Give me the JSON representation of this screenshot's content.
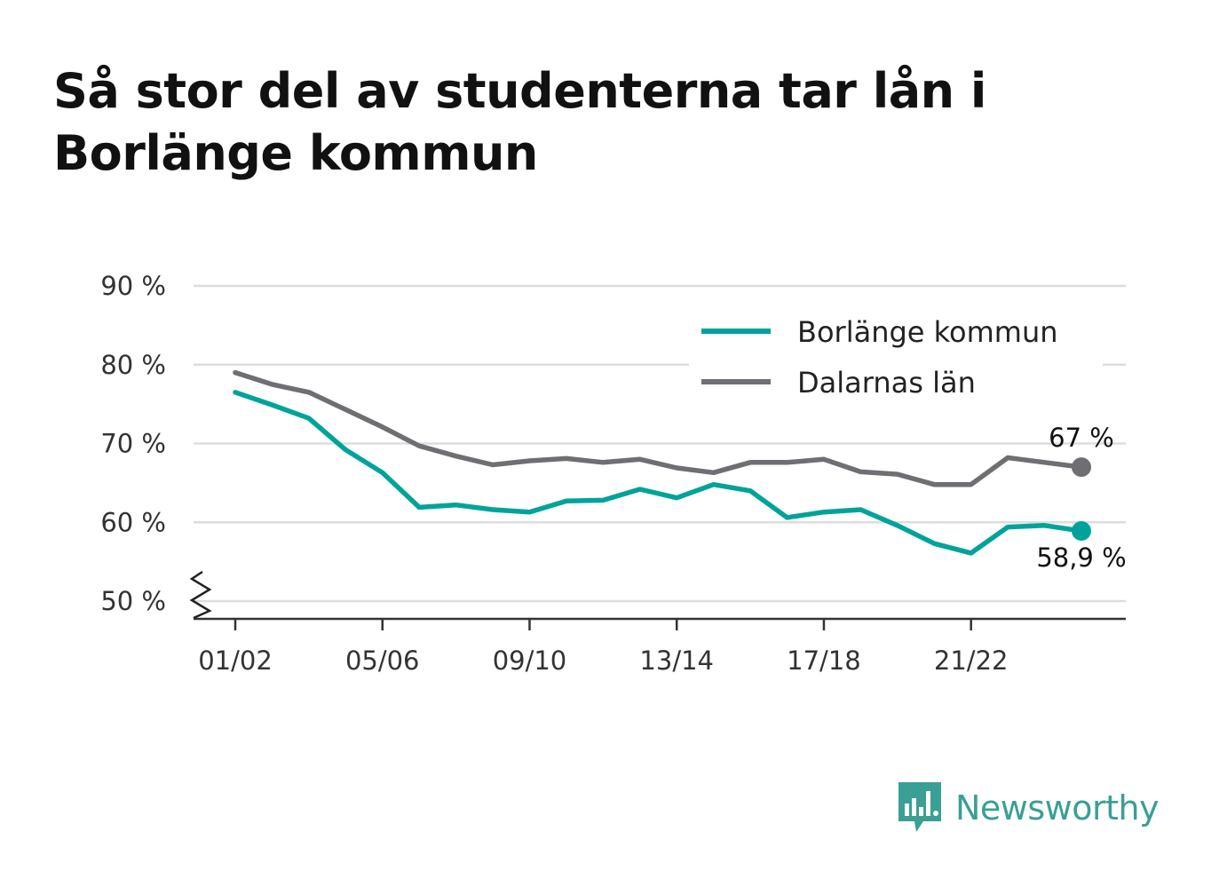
{
  "title": "Så stor del av studenterna tar lån i Borlänge kommun",
  "brand": {
    "name": "Newsworthy",
    "icon": "bar-chart-speech-bubble-icon",
    "color": "#3a9f94"
  },
  "chart_data": {
    "type": "line",
    "title": "Så stor del av studenterna tar lån i Borlänge kommun",
    "xlabel": "",
    "ylabel": "",
    "x": [
      "01/02",
      "02/03",
      "03/04",
      "04/05",
      "05/06",
      "06/07",
      "07/08",
      "08/09",
      "09/10",
      "10/11",
      "11/12",
      "12/13",
      "13/14",
      "14/15",
      "15/16",
      "16/17",
      "17/18",
      "18/19",
      "19/20",
      "20/21",
      "21/22",
      "22/23",
      "23/24",
      "24/25"
    ],
    "x_tick_labels": [
      "01/02",
      "05/06",
      "09/10",
      "13/14",
      "17/18",
      "21/22"
    ],
    "y_ticks": [
      50,
      60,
      70,
      80,
      90
    ],
    "y_tick_labels": [
      "50 %",
      "60 %",
      "70 %",
      "80 %",
      "90 %"
    ],
    "ylim": [
      50,
      90
    ],
    "y_axis_break": true,
    "grid": true,
    "legend_position": "top-right",
    "series": [
      {
        "name": "Borlänge kommun",
        "color": "#00a39a",
        "values": [
          76.5,
          74.9,
          73.2,
          69.2,
          66.3,
          61.9,
          62.2,
          61.6,
          61.3,
          62.7,
          62.8,
          64.2,
          63.1,
          64.8,
          64.0,
          60.6,
          61.3,
          61.6,
          59.6,
          57.3,
          56.1,
          59.4,
          59.6,
          58.9
        ],
        "end_label": "58,9 %"
      },
      {
        "name": "Dalarnas län",
        "color": "#6e6e73",
        "values": [
          79.0,
          77.5,
          76.5,
          74.3,
          72.1,
          69.7,
          68.4,
          67.3,
          67.8,
          68.1,
          67.6,
          68.0,
          66.9,
          66.3,
          67.6,
          67.6,
          68.0,
          66.4,
          66.1,
          64.8,
          64.8,
          68.2,
          67.6,
          67.0
        ],
        "end_label": "67 %"
      }
    ]
  }
}
